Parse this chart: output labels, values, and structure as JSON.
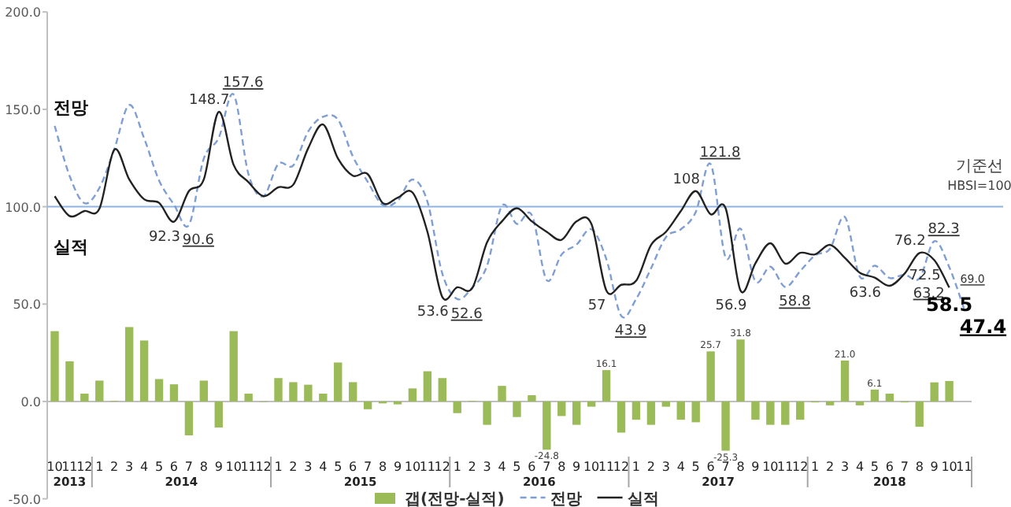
{
  "chart_data": {
    "type": "line",
    "x": [
      "2013-10",
      "2013-11",
      "2013-12",
      "2014-01",
      "2014-02",
      "2014-03",
      "2014-04",
      "2014-05",
      "2014-06",
      "2014-07",
      "2014-08",
      "2014-09",
      "2014-10",
      "2014-11",
      "2014-12",
      "2015-01",
      "2015-02",
      "2015-03",
      "2015-04",
      "2015-05",
      "2015-06",
      "2015-07",
      "2015-08",
      "2015-09",
      "2015-10",
      "2015-11",
      "2015-12",
      "2016-01",
      "2016-02",
      "2016-03",
      "2016-04",
      "2016-05",
      "2016-06",
      "2016-07",
      "2016-08",
      "2016-09",
      "2016-10",
      "2016-11",
      "2016-12",
      "2017-01",
      "2017-02",
      "2017-03",
      "2017-04",
      "2017-05",
      "2017-06",
      "2017-07",
      "2017-08",
      "2017-09",
      "2017-10",
      "2017-11",
      "2017-12",
      "2018-01",
      "2018-02",
      "2018-03",
      "2018-04",
      "2018-05",
      "2018-06",
      "2018-07",
      "2018-08",
      "2018-09",
      "2018-10",
      "2018-11"
    ],
    "xticks": [
      {
        "value": "2013-10",
        "label": "10"
      },
      {
        "value": "2013-11",
        "label": "11"
      },
      {
        "value": "2013-12",
        "label": "12"
      },
      {
        "value": "2014-01",
        "label": "1"
      },
      {
        "value": "2014-02",
        "label": "2"
      },
      {
        "value": "2014-03",
        "label": "3"
      },
      {
        "value": "2014-04",
        "label": "4"
      },
      {
        "value": "2014-05",
        "label": "5"
      },
      {
        "value": "2014-06",
        "label": "6"
      },
      {
        "value": "2014-07",
        "label": "7"
      },
      {
        "value": "2014-08",
        "label": "8"
      },
      {
        "value": "2014-09",
        "label": "9"
      },
      {
        "value": "2014-10",
        "label": "10"
      },
      {
        "value": "2014-11",
        "label": "11"
      },
      {
        "value": "2014-12",
        "label": "12"
      },
      {
        "value": "2015-01",
        "label": "1"
      },
      {
        "value": "2015-02",
        "label": "2"
      },
      {
        "value": "2015-03",
        "label": "3"
      },
      {
        "value": "2015-04",
        "label": "4"
      },
      {
        "value": "2015-05",
        "label": "5"
      },
      {
        "value": "2015-06",
        "label": "6"
      },
      {
        "value": "2015-07",
        "label": "7"
      },
      {
        "value": "2015-08",
        "label": "8"
      },
      {
        "value": "2015-09",
        "label": "9"
      },
      {
        "value": "2015-10",
        "label": "10"
      },
      {
        "value": "2015-11",
        "label": "11"
      },
      {
        "value": "2015-12",
        "label": "12"
      },
      {
        "value": "2016-01",
        "label": "1"
      },
      {
        "value": "2016-02",
        "label": "2"
      },
      {
        "value": "2016-03",
        "label": "3"
      },
      {
        "value": "2016-04",
        "label": "4"
      },
      {
        "value": "2016-05",
        "label": "5"
      },
      {
        "value": "2016-06",
        "label": "6"
      },
      {
        "value": "2016-07",
        "label": "7"
      },
      {
        "value": "2016-08",
        "label": "8"
      },
      {
        "value": "2016-09",
        "label": "9"
      },
      {
        "value": "2016-10",
        "label": "10"
      },
      {
        "value": "2016-11",
        "label": "11"
      },
      {
        "value": "2016-12",
        "label": "12"
      },
      {
        "value": "2017-01",
        "label": "1"
      },
      {
        "value": "2017-02",
        "label": "2"
      },
      {
        "value": "2017-03",
        "label": "3"
      },
      {
        "value": "2017-04",
        "label": "4"
      },
      {
        "value": "2017-05",
        "label": "5"
      },
      {
        "value": "2017-06",
        "label": "6"
      },
      {
        "value": "2017-07",
        "label": "7"
      },
      {
        "value": "2017-08",
        "label": "8"
      },
      {
        "value": "2017-09",
        "label": "9"
      },
      {
        "value": "2017-10",
        "label": "10"
      },
      {
        "value": "2017-11",
        "label": "11"
      },
      {
        "value": "2017-12",
        "label": "12"
      },
      {
        "value": "2018-01",
        "label": "1"
      },
      {
        "value": "2018-02",
        "label": "2"
      },
      {
        "value": "2018-03",
        "label": "3"
      },
      {
        "value": "2018-04",
        "label": "4"
      },
      {
        "value": "2018-05",
        "label": "5"
      },
      {
        "value": "2018-06",
        "label": "6"
      },
      {
        "value": "2018-07",
        "label": "7"
      },
      {
        "value": "2018-08",
        "label": "8"
      },
      {
        "value": "2018-09",
        "label": "9"
      },
      {
        "value": "2018-10",
        "label": "10"
      },
      {
        "value": "2018-11",
        "label": "11"
      }
    ],
    "xlim": [
      "2013-09-16",
      "2018-11-16"
    ],
    "annotations": [
      "2013",
      "2014",
      "2015",
      "2016",
      "2017",
      "2018"
    ],
    "ylim": [
      -50,
      200
    ],
    "yticks": [
      {
        "value": -50,
        "label": "-50.0"
      },
      {
        "value": 0,
        "label": "0.0"
      },
      {
        "value": 50,
        "label": "50.0"
      },
      {
        "value": 100,
        "label": "100.0"
      },
      {
        "value": 150,
        "label": "150.0"
      },
      {
        "value": 200,
        "label": "200.0"
      }
    ],
    "series": [
      {
        "name": "갭(전망-실적)",
        "type": "bar",
        "color": "#9bbb59",
        "values": [
          36.1,
          20.6,
          4.0,
          10.7,
          0.3,
          38.2,
          31.3,
          11.5,
          8.8,
          -17.4,
          10.7,
          -13.4,
          36.1,
          4.0,
          0.0,
          12.0,
          9.9,
          8.6,
          4.0,
          20.0,
          9.9,
          -4.0,
          -1.0,
          -1.5,
          6.7,
          15.5,
          12.0,
          -6.0,
          0.3,
          -12.0,
          8.0,
          -8.0,
          3.2,
          -24.8,
          -7.5,
          -12.0,
          -2.7,
          16.1,
          -16.0,
          -9.4,
          -12.0,
          -2.7,
          -9.4,
          -10.7,
          25.7,
          -25.3,
          31.8,
          -9.4,
          -12.0,
          -12.0,
          -9.4,
          -0.5,
          -2.0,
          21.0,
          -2.0,
          6.1,
          4.0,
          -0.5,
          -13.0,
          9.8,
          10.5,
          null
        ],
        "value_labels": [
          null,
          null,
          null,
          null,
          null,
          null,
          null,
          null,
          null,
          null,
          null,
          null,
          null,
          null,
          null,
          null,
          null,
          null,
          null,
          null,
          null,
          null,
          null,
          null,
          null,
          null,
          null,
          null,
          null,
          null,
          null,
          null,
          null,
          "-24.8",
          null,
          null,
          null,
          "16.1",
          null,
          null,
          null,
          null,
          null,
          null,
          "25.7",
          "-25.3",
          "31.8",
          null,
          null,
          null,
          null,
          null,
          null,
          "21.0",
          null,
          "6.1",
          null,
          null,
          null,
          null,
          null,
          null
        ]
      },
      {
        "name": "전망",
        "type": "line",
        "line_style": "dashed",
        "color": "#7f9fd3",
        "values": [
          141.5,
          115.8,
          101.8,
          109.7,
          129.6,
          152.2,
          135.1,
          113.5,
          101.1,
          90.6,
          124.7,
          135.3,
          157.6,
          116.6,
          105.4,
          122.0,
          121.2,
          138.6,
          146.2,
          144.7,
          125.8,
          112.7,
          100.9,
          103.1,
          114.0,
          102.6,
          65.6,
          52.6,
          58.4,
          69.7,
          100.5,
          91.2,
          95.7,
          62.3,
          75.5,
          80.5,
          88.4,
          73.1,
          43.9,
          52.6,
          68.4,
          84.4,
          88.4,
          97.3,
          121.8,
          73.9,
          88.7,
          61.6,
          69.2,
          58.8,
          66.9,
          75.0,
          78.4,
          94.7,
          64.1,
          69.7,
          63.4,
          65.1,
          63.2,
          82.3,
          69.0,
          47.4
        ],
        "value_labels": [
          null,
          null,
          null,
          null,
          null,
          null,
          null,
          null,
          null,
          "90.6",
          null,
          null,
          "157.6",
          null,
          null,
          null,
          null,
          null,
          null,
          null,
          null,
          null,
          null,
          null,
          null,
          null,
          null,
          "52.6",
          null,
          null,
          null,
          null,
          null,
          null,
          null,
          null,
          null,
          null,
          "43.9",
          null,
          null,
          null,
          null,
          null,
          "121.8",
          null,
          null,
          null,
          null,
          "58.8",
          null,
          null,
          null,
          null,
          null,
          null,
          null,
          null,
          "63.2",
          "82.3",
          "69.0",
          "47.4"
        ]
      },
      {
        "name": "실적",
        "type": "line",
        "line_style": "solid",
        "color": "#222222",
        "values": [
          105.4,
          95.2,
          97.8,
          99.0,
          129.3,
          114.0,
          103.8,
          102.0,
          92.3,
          108.0,
          114.0,
          148.7,
          121.5,
          112.6,
          105.4,
          110.0,
          111.3,
          130.0,
          142.2,
          124.7,
          115.9,
          116.7,
          101.9,
          104.6,
          107.3,
          87.1,
          53.6,
          58.6,
          58.1,
          81.7,
          92.5,
          99.2,
          92.5,
          87.1,
          83.0,
          92.5,
          91.1,
          57,
          59.9,
          62.0,
          80.4,
          87.1,
          97.8,
          108,
          96.1,
          99.2,
          56.9,
          71.0,
          81.2,
          70.8,
          76.3,
          75.5,
          80.4,
          73.7,
          66.1,
          63.6,
          59.4,
          65.6,
          76.2,
          72.5,
          58.5,
          null
        ],
        "value_labels": [
          null,
          null,
          null,
          null,
          null,
          null,
          null,
          null,
          "92.3",
          null,
          null,
          "148.7",
          null,
          null,
          null,
          null,
          null,
          null,
          null,
          null,
          null,
          null,
          null,
          null,
          null,
          null,
          "53.6",
          null,
          null,
          null,
          null,
          null,
          null,
          null,
          null,
          null,
          null,
          "57",
          null,
          null,
          null,
          null,
          null,
          "108",
          null,
          null,
          "56.9",
          null,
          null,
          null,
          null,
          null,
          null,
          null,
          null,
          "63.6",
          null,
          null,
          "76.2",
          "72.5",
          "58.5",
          null
        ]
      }
    ],
    "ref_lines": [
      {
        "axis": "y",
        "value": 100,
        "label": "기준선 HBSI=100",
        "color": "#8db4e2"
      }
    ],
    "legend": "bottom",
    "grid": false,
    "marker": "none"
  }
}
